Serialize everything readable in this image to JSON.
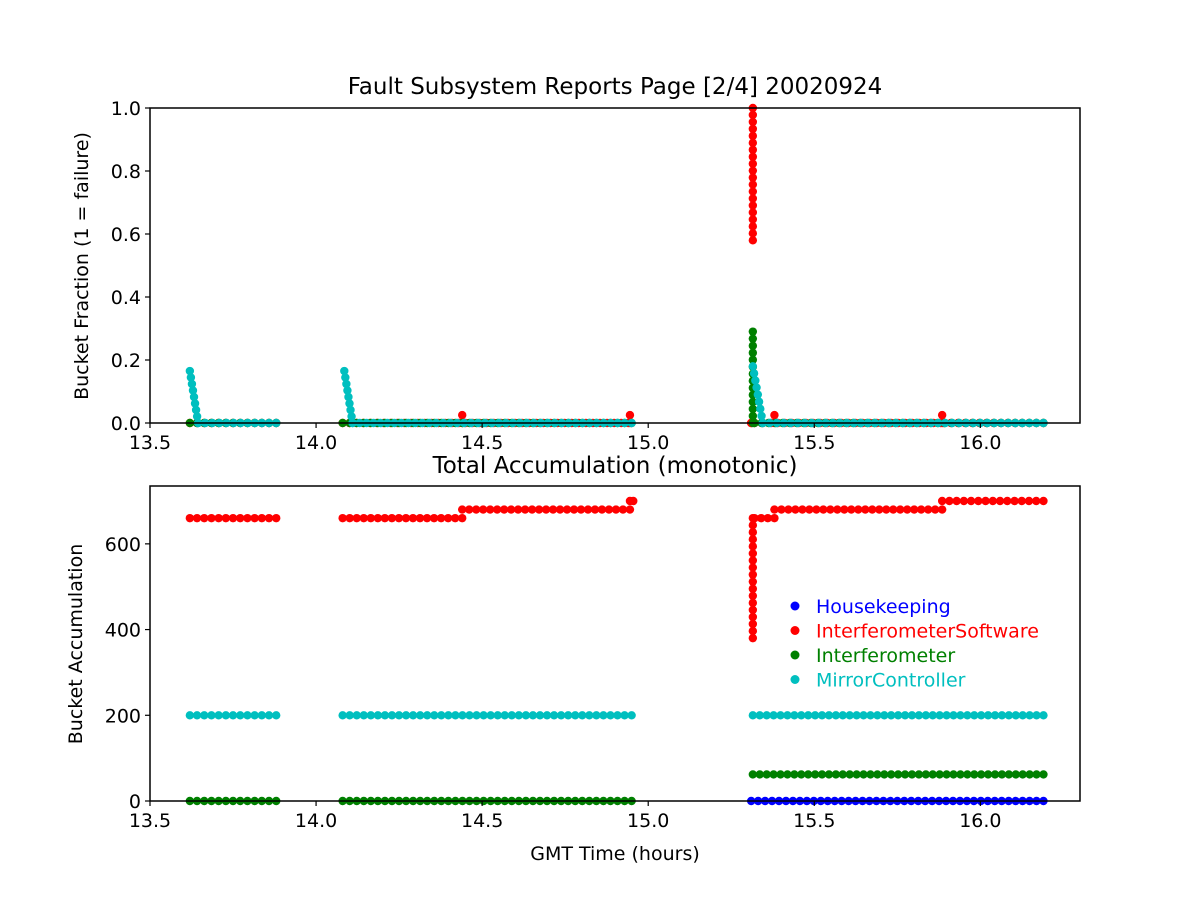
{
  "chart_data": [
    {
      "type": "scatter",
      "title": "Fault Subsystem Reports Page [2/4] 20020924",
      "xlabel": "",
      "ylabel": "Bucket Fraction (1 = failure)",
      "xlim": [
        13.5,
        16.3
      ],
      "ylim": [
        0.0,
        1.0
      ],
      "xticks": [
        "13.5",
        "14.0",
        "14.5",
        "15.0",
        "15.5",
        "16.0"
      ],
      "yticks": [
        "0.0",
        "0.2",
        "0.4",
        "0.6",
        "0.8",
        "1.0"
      ],
      "grid": false,
      "series": [
        {
          "color": "#0000ff",
          "segments": []
        },
        {
          "color": "#ff0000",
          "segments": [
            {
              "x0": 13.62,
              "x1": 13.88,
              "y0": 0.0,
              "y1": 0.0
            },
            {
              "x0": 14.08,
              "x1": 14.43,
              "y0": 0.0,
              "y1": 0.0
            },
            {
              "x0": 14.44,
              "x1": 14.44,
              "y0": 0.0,
              "y1": 0.025
            },
            {
              "x0": 14.45,
              "x1": 14.94,
              "y0": 0.0,
              "y1": 0.0
            },
            {
              "x0": 14.945,
              "x1": 14.945,
              "y0": 0.0,
              "y1": 0.025
            },
            {
              "x0": 15.31,
              "x1": 15.31,
              "y0": 0.0,
              "y1": 0.0
            },
            {
              "x0": 15.315,
              "x1": 15.315,
              "y0": 0.58,
              "y1": 1.0
            },
            {
              "x0": 15.32,
              "x1": 15.37,
              "y0": 0.0,
              "y1": 0.0
            },
            {
              "x0": 15.38,
              "x1": 15.38,
              "y0": 0.0,
              "y1": 0.025
            },
            {
              "x0": 15.39,
              "x1": 15.88,
              "y0": 0.0,
              "y1": 0.0
            },
            {
              "x0": 15.885,
              "x1": 15.885,
              "y0": 0.0,
              "y1": 0.025
            },
            {
              "x0": 15.89,
              "x1": 16.19,
              "y0": 0.0,
              "y1": 0.0
            }
          ]
        },
        {
          "color": "#008000",
          "segments": [
            {
              "x0": 13.62,
              "x1": 13.88,
              "y0": 0.0,
              "y1": 0.0
            },
            {
              "x0": 14.08,
              "x1": 14.95,
              "y0": 0.0,
              "y1": 0.0
            },
            {
              "x0": 15.315,
              "x1": 15.315,
              "y0": 0.0,
              "y1": 0.29
            },
            {
              "x0": 15.32,
              "x1": 16.19,
              "y0": 0.0,
              "y1": 0.0
            }
          ]
        },
        {
          "color": "#00bfbf",
          "segments": [
            {
              "x0": 13.62,
              "x1": 13.645,
              "y0": 0.165,
              "y1": 0.0
            },
            {
              "x0": 13.645,
              "x1": 13.88,
              "y0": 0.0,
              "y1": 0.0
            },
            {
              "x0": 14.085,
              "x1": 14.11,
              "y0": 0.165,
              "y1": 0.0
            },
            {
              "x0": 14.11,
              "x1": 14.95,
              "y0": 0.0,
              "y1": 0.0
            },
            {
              "x0": 15.315,
              "x1": 15.345,
              "y0": 0.18,
              "y1": 0.0
            },
            {
              "x0": 15.345,
              "x1": 16.19,
              "y0": 0.0,
              "y1": 0.0
            }
          ]
        }
      ]
    },
    {
      "type": "scatter",
      "title": "Total Accumulation (monotonic)",
      "xlabel": "GMT Time (hours)",
      "ylabel": "Bucket Accumulation",
      "xlim": [
        13.5,
        16.3
      ],
      "ylim": [
        0,
        735
      ],
      "xticks": [
        "13.5",
        "14.0",
        "14.5",
        "15.0",
        "15.5",
        "16.0"
      ],
      "yticks": [
        "0",
        "200",
        "400",
        "600"
      ],
      "grid": false,
      "legend_position": "right",
      "series": [
        {
          "name": "Housekeeping",
          "color": "#0000ff",
          "segments": [
            {
              "x0": 15.31,
              "x1": 16.19,
              "y0": 0,
              "y1": 0
            }
          ]
        },
        {
          "name": "InterferometerSoftware",
          "color": "#ff0000",
          "segments": [
            {
              "x0": 13.62,
              "x1": 13.88,
              "y0": 660,
              "y1": 660
            },
            {
              "x0": 14.08,
              "x1": 14.44,
              "y0": 660,
              "y1": 660
            },
            {
              "x0": 14.44,
              "x1": 14.945,
              "y0": 680,
              "y1": 680
            },
            {
              "x0": 14.945,
              "x1": 14.955,
              "y0": 700,
              "y1": 700
            },
            {
              "x0": 15.315,
              "x1": 15.315,
              "y0": 380,
              "y1": 660
            },
            {
              "x0": 15.32,
              "x1": 15.38,
              "y0": 660,
              "y1": 660
            },
            {
              "x0": 15.38,
              "x1": 15.885,
              "y0": 680,
              "y1": 680
            },
            {
              "x0": 15.885,
              "x1": 16.19,
              "y0": 700,
              "y1": 700
            }
          ]
        },
        {
          "name": "Interferometer",
          "color": "#008000",
          "segments": [
            {
              "x0": 13.62,
              "x1": 13.88,
              "y0": 0,
              "y1": 0
            },
            {
              "x0": 14.08,
              "x1": 14.95,
              "y0": 0,
              "y1": 0
            },
            {
              "x0": 15.315,
              "x1": 16.19,
              "y0": 62,
              "y1": 62
            }
          ]
        },
        {
          "name": "MirrorController",
          "color": "#00bfbf",
          "segments": [
            {
              "x0": 13.62,
              "x1": 13.88,
              "y0": 200,
              "y1": 200
            },
            {
              "x0": 14.08,
              "x1": 14.95,
              "y0": 200,
              "y1": 200
            },
            {
              "x0": 15.315,
              "x1": 16.19,
              "y0": 200,
              "y1": 200
            }
          ]
        }
      ]
    }
  ]
}
